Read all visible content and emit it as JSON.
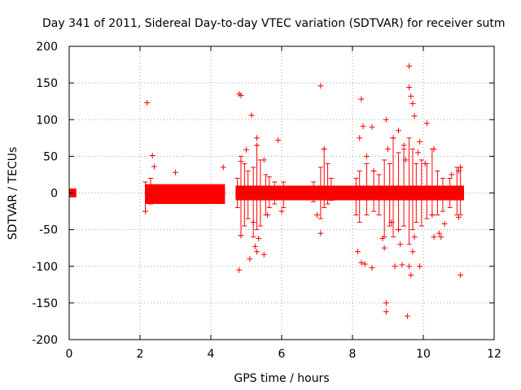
{
  "chart_data": {
    "type": "scatter",
    "title": "Day 341 of 2011, Sidereal Day-to-day VTEC variation (SDTVAR) for receiver sutm",
    "xlabel": "GPS time / hours",
    "ylabel": "SDTVAR / TECUs",
    "xlim": [
      0,
      12
    ],
    "ylim": [
      -200,
      200
    ],
    "xticks": [
      0,
      2,
      4,
      6,
      8,
      10,
      12
    ],
    "xtick_labels": [
      "0",
      "2",
      "4",
      "6",
      "8",
      "10",
      "12"
    ],
    "yticks": [
      -200,
      -150,
      -100,
      -50,
      0,
      50,
      100,
      150,
      200
    ],
    "ytick_labels": [
      "-200",
      "-150",
      "-100",
      "-50",
      "0",
      "50",
      "100",
      "150",
      "200"
    ],
    "grid": true,
    "marker": "+",
    "color": "#ff0000",
    "dense_bands": [
      {
        "x_start": 0.0,
        "x_end": 0.2,
        "y_low": -6,
        "y_high": 6
      },
      {
        "x_start": 2.15,
        "x_end": 4.4,
        "y_low": -15,
        "y_high": 12
      },
      {
        "x_start": 4.7,
        "x_end": 11.15,
        "y_low": -10,
        "y_high": 10
      }
    ],
    "outliers": [
      {
        "x": 2.2,
        "y": 123
      },
      {
        "x": 2.35,
        "y": 51
      },
      {
        "x": 2.4,
        "y": 36
      },
      {
        "x": 2.15,
        "y": -25
      },
      {
        "x": 3.0,
        "y": 28
      },
      {
        "x": 4.35,
        "y": 35
      },
      {
        "x": 4.8,
        "y": 135
      },
      {
        "x": 4.85,
        "y": 133
      },
      {
        "x": 5.15,
        "y": 106
      },
      {
        "x": 5.3,
        "y": 75
      },
      {
        "x": 5.3,
        "y": 65
      },
      {
        "x": 5.0,
        "y": 59
      },
      {
        "x": 4.85,
        "y": 43
      },
      {
        "x": 5.5,
        "y": 45
      },
      {
        "x": 4.8,
        "y": -105
      },
      {
        "x": 4.85,
        "y": -58
      },
      {
        "x": 5.25,
        "y": -73
      },
      {
        "x": 5.3,
        "y": -80
      },
      {
        "x": 5.35,
        "y": -62
      },
      {
        "x": 5.5,
        "y": -84
      },
      {
        "x": 5.2,
        "y": -40
      },
      {
        "x": 5.1,
        "y": -90
      },
      {
        "x": 5.9,
        "y": 72
      },
      {
        "x": 5.6,
        "y": -30
      },
      {
        "x": 6.0,
        "y": -25
      },
      {
        "x": 7.1,
        "y": 146
      },
      {
        "x": 7.2,
        "y": 60
      },
      {
        "x": 7.1,
        "y": -55
      },
      {
        "x": 7.0,
        "y": -30
      },
      {
        "x": 8.25,
        "y": 128
      },
      {
        "x": 8.3,
        "y": 91
      },
      {
        "x": 8.55,
        "y": 90
      },
      {
        "x": 8.2,
        "y": 75
      },
      {
        "x": 8.4,
        "y": 50
      },
      {
        "x": 8.15,
        "y": -80
      },
      {
        "x": 8.25,
        "y": -95
      },
      {
        "x": 8.35,
        "y": -97
      },
      {
        "x": 8.55,
        "y": -102
      },
      {
        "x": 8.6,
        "y": 30
      },
      {
        "x": 8.95,
        "y": -150
      },
      {
        "x": 8.95,
        "y": -162
      },
      {
        "x": 8.9,
        "y": -75
      },
      {
        "x": 8.85,
        "y": -62
      },
      {
        "x": 8.95,
        "y": 100
      },
      {
        "x": 9.0,
        "y": 60
      },
      {
        "x": 9.15,
        "y": 75
      },
      {
        "x": 9.1,
        "y": -40
      },
      {
        "x": 9.2,
        "y": -100
      },
      {
        "x": 9.4,
        "y": -98
      },
      {
        "x": 9.3,
        "y": -50
      },
      {
        "x": 9.35,
        "y": -70
      },
      {
        "x": 9.3,
        "y": 85
      },
      {
        "x": 9.45,
        "y": 65
      },
      {
        "x": 9.5,
        "y": 45
      },
      {
        "x": 9.6,
        "y": 173
      },
      {
        "x": 9.6,
        "y": 144
      },
      {
        "x": 9.65,
        "y": 132
      },
      {
        "x": 9.7,
        "y": 122
      },
      {
        "x": 9.75,
        "y": 105
      },
      {
        "x": 9.55,
        "y": -168
      },
      {
        "x": 9.65,
        "y": -112
      },
      {
        "x": 9.6,
        "y": -100
      },
      {
        "x": 9.7,
        "y": -80
      },
      {
        "x": 9.75,
        "y": -60
      },
      {
        "x": 9.9,
        "y": -100
      },
      {
        "x": 9.9,
        "y": 70
      },
      {
        "x": 9.85,
        "y": 55
      },
      {
        "x": 10.1,
        "y": 95
      },
      {
        "x": 10.05,
        "y": 40
      },
      {
        "x": 10.3,
        "y": 60
      },
      {
        "x": 10.25,
        "y": -30
      },
      {
        "x": 10.3,
        "y": -60
      },
      {
        "x": 10.45,
        "y": -55
      },
      {
        "x": 10.6,
        "y": -42
      },
      {
        "x": 10.5,
        "y": -60
      },
      {
        "x": 10.8,
        "y": 25
      },
      {
        "x": 11.05,
        "y": -112
      },
      {
        "x": 11.0,
        "y": -33
      },
      {
        "x": 11.05,
        "y": 35
      },
      {
        "x": 11.0,
        "y": 30
      }
    ],
    "spikes": [
      {
        "x": 2.15,
        "y_low": -25,
        "y_high": 15
      },
      {
        "x": 2.3,
        "y_low": -15,
        "y_high": 20
      },
      {
        "x": 4.75,
        "y_low": -20,
        "y_high": 20
      },
      {
        "x": 4.85,
        "y_low": -58,
        "y_high": 50
      },
      {
        "x": 4.95,
        "y_low": -45,
        "y_high": 40
      },
      {
        "x": 5.05,
        "y_low": -35,
        "y_high": 30
      },
      {
        "x": 5.2,
        "y_low": -60,
        "y_high": 35
      },
      {
        "x": 5.3,
        "y_low": -50,
        "y_high": 65
      },
      {
        "x": 5.4,
        "y_low": -45,
        "y_high": 45
      },
      {
        "x": 5.55,
        "y_low": -30,
        "y_high": 25
      },
      {
        "x": 5.65,
        "y_low": -20,
        "y_high": 22
      },
      {
        "x": 5.8,
        "y_low": -15,
        "y_high": 15
      },
      {
        "x": 6.05,
        "y_low": -20,
        "y_high": 15
      },
      {
        "x": 6.9,
        "y_low": -12,
        "y_high": 15
      },
      {
        "x": 7.1,
        "y_low": -35,
        "y_high": 35
      },
      {
        "x": 7.2,
        "y_low": -20,
        "y_high": 60
      },
      {
        "x": 7.3,
        "y_low": -15,
        "y_high": 40
      },
      {
        "x": 7.4,
        "y_low": -10,
        "y_high": 20
      },
      {
        "x": 8.1,
        "y_low": -30,
        "y_high": 20
      },
      {
        "x": 8.2,
        "y_low": -40,
        "y_high": 30
      },
      {
        "x": 8.4,
        "y_low": -30,
        "y_high": 40
      },
      {
        "x": 8.6,
        "y_low": -25,
        "y_high": 30
      },
      {
        "x": 8.75,
        "y_low": -30,
        "y_high": 25
      },
      {
        "x": 8.9,
        "y_low": -60,
        "y_high": 45
      },
      {
        "x": 9.05,
        "y_low": -45,
        "y_high": 40
      },
      {
        "x": 9.15,
        "y_low": -60,
        "y_high": 75
      },
      {
        "x": 9.3,
        "y_low": -50,
        "y_high": 55
      },
      {
        "x": 9.45,
        "y_low": -45,
        "y_high": 60
      },
      {
        "x": 9.6,
        "y_low": -70,
        "y_high": 75
      },
      {
        "x": 9.7,
        "y_low": -50,
        "y_high": 60
      },
      {
        "x": 9.8,
        "y_low": -40,
        "y_high": 40
      },
      {
        "x": 9.95,
        "y_low": -45,
        "y_high": 45
      },
      {
        "x": 10.1,
        "y_low": -35,
        "y_high": 40
      },
      {
        "x": 10.25,
        "y_low": -30,
        "y_high": 60
      },
      {
        "x": 10.4,
        "y_low": -30,
        "y_high": 30
      },
      {
        "x": 10.55,
        "y_low": -25,
        "y_high": 20
      },
      {
        "x": 10.75,
        "y_low": -20,
        "y_high": 20
      },
      {
        "x": 10.95,
        "y_low": -30,
        "y_high": 35
      },
      {
        "x": 11.05,
        "y_low": -30,
        "y_high": 35
      }
    ]
  }
}
